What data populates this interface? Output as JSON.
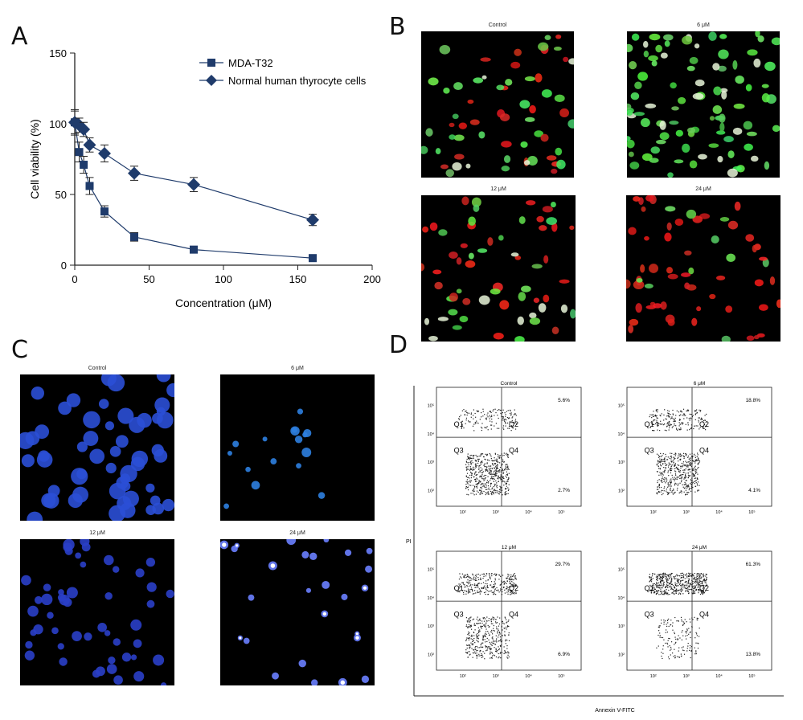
{
  "panels": {
    "A": {
      "letter": "A"
    },
    "B": {
      "letter": "B",
      "images": [
        {
          "label": "Control",
          "palette": "green-red",
          "red": 0.25
        },
        {
          "label": "6 μM",
          "palette": "green",
          "red": 0.0
        },
        {
          "label": "12 μM",
          "palette": "green-red",
          "red": 0.55
        },
        {
          "label": "24 μM",
          "palette": "red",
          "red": 0.85
        }
      ]
    },
    "C": {
      "letter": "C",
      "images": [
        {
          "label": "Control",
          "density": "high"
        },
        {
          "label": "6 μM",
          "density": "low"
        },
        {
          "label": "12 μM",
          "density": "medium"
        },
        {
          "label": "24 μM",
          "density": "low-bright"
        }
      ]
    },
    "D": {
      "letter": "D",
      "ylabel": "PI",
      "xlabel": "Annexin V-FITC",
      "plots": [
        {
          "label": "Control",
          "upper_right": "5.6%",
          "lower_right": "2.7%"
        },
        {
          "label": "6 μM",
          "upper_right": "18.8%",
          "lower_right": "4.1%"
        },
        {
          "label": "12 μM",
          "upper_right": "29.7%",
          "lower_right": "6.9%"
        },
        {
          "label": "24 μM",
          "upper_right": "61.3%",
          "lower_right": "13.8%"
        }
      ],
      "quadrants": [
        "Q1",
        "Q2",
        "Q3",
        "Q4"
      ],
      "ticks": [
        "10¹",
        "10²",
        "10³",
        "10⁴",
        "10⁵"
      ]
    }
  },
  "chart_data": {
    "type": "line",
    "title": "",
    "xlabel": "Concentration (μM)",
    "ylabel": "Cell viability (%)",
    "xlim": [
      0,
      200
    ],
    "ylim": [
      0,
      150
    ],
    "xticks": [
      0,
      50,
      100,
      150,
      200
    ],
    "yticks": [
      0,
      50,
      100,
      150
    ],
    "legend_position": "top-right",
    "series": [
      {
        "name": "MDA-T32",
        "marker": "square",
        "color": "#1f3b6b",
        "x": [
          0,
          3,
          6,
          10,
          20,
          40,
          80,
          160
        ],
        "y": [
          101,
          80,
          71,
          56,
          38,
          20,
          11,
          5
        ],
        "err": [
          9,
          7,
          6,
          6,
          4,
          3,
          1,
          1
        ]
      },
      {
        "name": "Normal human thyrocyte cells",
        "marker": "diamond",
        "color": "#1f3b6b",
        "x": [
          0,
          3,
          6,
          10,
          20,
          40,
          80,
          160
        ],
        "y": [
          101,
          99,
          96,
          85,
          79,
          65,
          57,
          32
        ],
        "err": [
          8,
          5,
          5,
          5,
          6,
          5,
          5,
          4
        ]
      }
    ]
  }
}
